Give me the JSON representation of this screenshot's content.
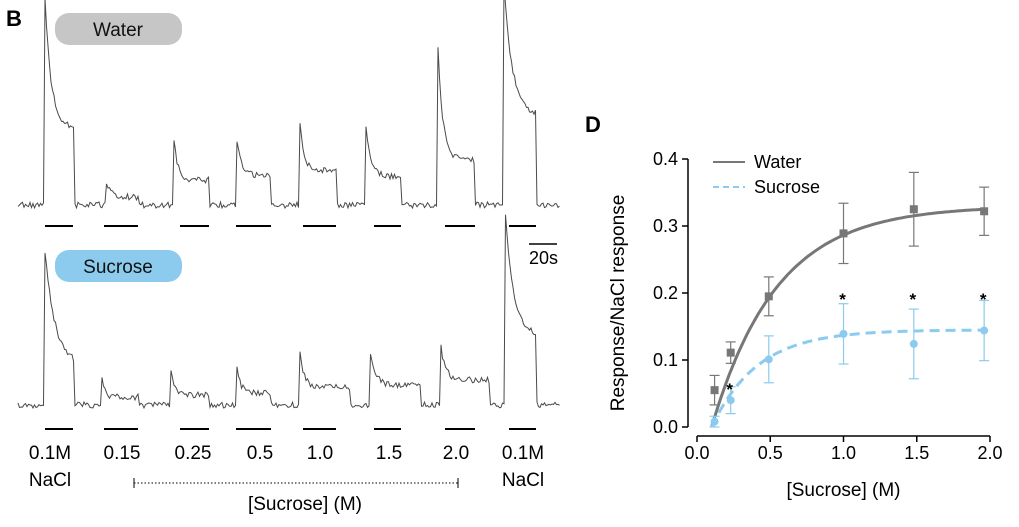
{
  "panel_b": {
    "letter": "B",
    "condition_labels": [
      "Water",
      "Sucrose"
    ],
    "colors": {
      "water_pill": "#c6c6c6",
      "sucrose_pill": "#8ccbee",
      "trace": "#4a4a4a"
    },
    "scale_bar_label": "20s",
    "stimuli": [
      {
        "top": "0.1M",
        "bottom": "NaCl"
      },
      {
        "top": "0.15",
        "bottom": ""
      },
      {
        "top": "0.25",
        "bottom": ""
      },
      {
        "top": "0.5",
        "bottom": ""
      },
      {
        "top": "1.0",
        "bottom": ""
      },
      {
        "top": "1.5",
        "bottom": ""
      },
      {
        "top": "2.0",
        "bottom": ""
      },
      {
        "top": "0.1M",
        "bottom": "NaCl"
      }
    ],
    "sucrose_range_label": "[Sucrose] (M)"
  },
  "chart_data": {
    "type": "line",
    "panel_letter": "D",
    "xlabel": "[Sucrose] (M)",
    "ylabel": "Response/NaCl response",
    "xlim": [
      0,
      2.0
    ],
    "ylim": [
      0,
      0.4
    ],
    "xticks": [
      "0.0",
      "0.5",
      "1.0",
      "1.5",
      "2.0"
    ],
    "yticks": [
      "0.0",
      "0.1",
      "0.2",
      "0.3",
      "0.4"
    ],
    "legend_position": "top-left",
    "series": [
      {
        "name": "Water",
        "color": "#777777",
        "line": "solid",
        "marker": "square",
        "x": [
          0.12,
          0.23,
          0.49,
          1.0,
          1.48,
          1.96
        ],
        "y": [
          0.055,
          0.111,
          0.195,
          0.289,
          0.325,
          0.322
        ],
        "err": [
          0.022,
          0.016,
          0.029,
          0.045,
          0.055,
          0.036
        ],
        "fit": {
          "ymax": 0.33,
          "k": 2.25,
          "x0": 0.1
        }
      },
      {
        "name": "Sucrose",
        "color": "#8ccbee",
        "line": "dashed",
        "marker": "circle",
        "x": [
          0.12,
          0.23,
          0.49,
          1.0,
          1.48,
          1.96
        ],
        "y": [
          0.008,
          0.04,
          0.101,
          0.139,
          0.124,
          0.144
        ],
        "err": [
          0.008,
          0.02,
          0.035,
          0.045,
          0.052,
          0.045
        ],
        "fit": {
          "ymax": 0.145,
          "k": 3.2,
          "x0": 0.1
        }
      }
    ],
    "annotations": [
      {
        "text": "*",
        "x": 0.23,
        "y": 0.06
      },
      {
        "text": "*",
        "x": 1.0,
        "y": 0.194
      },
      {
        "text": "*",
        "x": 1.48,
        "y": 0.194
      },
      {
        "text": "*",
        "x": 1.96,
        "y": 0.194
      }
    ]
  }
}
